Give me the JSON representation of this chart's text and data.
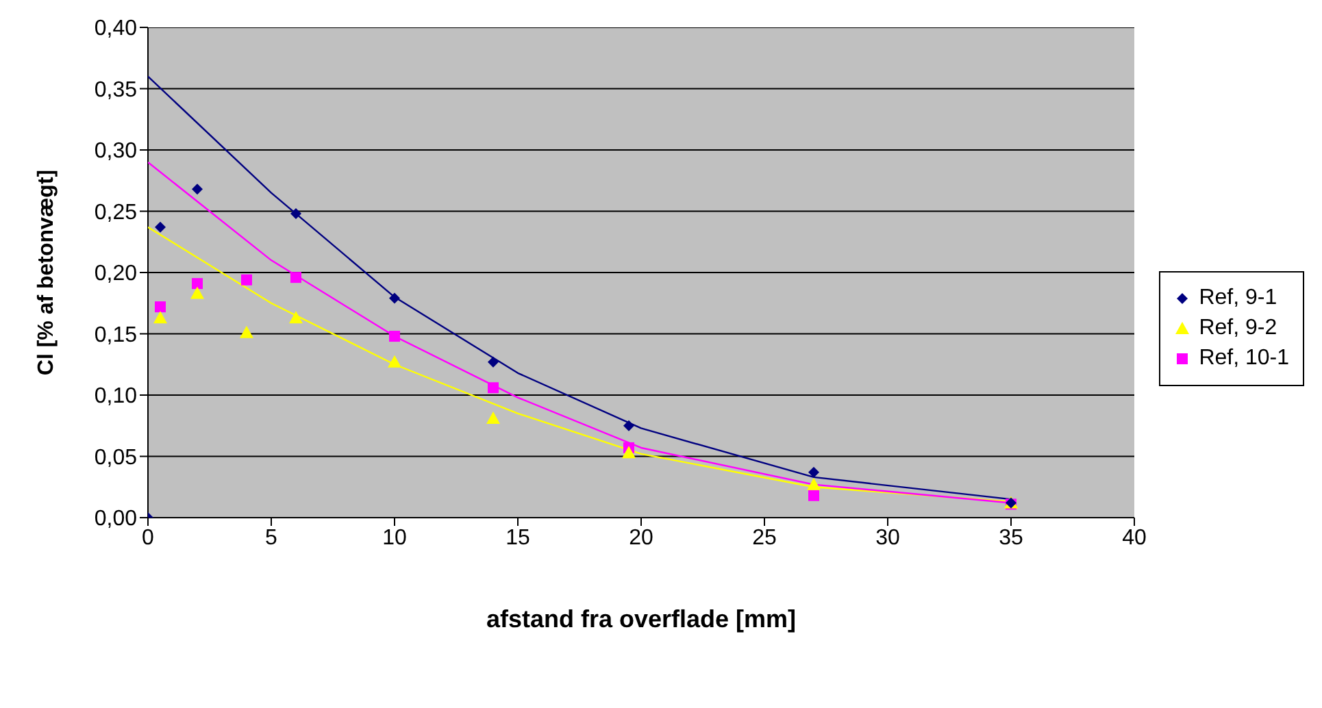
{
  "chart_data": {
    "type": "scatter",
    "xlabel": "afstand fra overflade [mm]",
    "ylabel": "Cl [% af betonvægt]",
    "xlim": [
      0,
      40
    ],
    "xticks": [
      0,
      5,
      10,
      15,
      20,
      25,
      30,
      35,
      40
    ],
    "ylim": [
      0,
      0.4
    ],
    "yticks": [
      {
        "value": 0,
        "label": "0,00"
      },
      {
        "value": 0.05,
        "label": "0,05"
      },
      {
        "value": 0.1,
        "label": "0,10"
      },
      {
        "value": 0.15,
        "label": "0,15"
      },
      {
        "value": 0.2,
        "label": "0,20"
      },
      {
        "value": 0.25,
        "label": "0,25"
      },
      {
        "value": 0.3,
        "label": "0,30"
      },
      {
        "value": 0.35,
        "label": "0,35"
      },
      {
        "value": 0.4,
        "label": "0,40"
      }
    ],
    "grid": "y",
    "legend": "right",
    "series": [
      {
        "name": "Ref, 9-1",
        "type": "scatter",
        "marker": "diamond",
        "color": "#000080",
        "x": [
          0,
          0.5,
          2,
          6,
          10,
          14,
          19.5,
          27,
          35
        ],
        "values": [
          0,
          0.237,
          0.268,
          0.248,
          0.179,
          0.127,
          0.075,
          0.037,
          0.012
        ]
      },
      {
        "name": "Ref, 9-2",
        "type": "scatter",
        "marker": "triangle",
        "color": "#ffff00",
        "x": [
          0.5,
          2,
          4,
          6,
          10,
          14,
          19.5,
          27,
          35
        ],
        "values": [
          0.163,
          0.183,
          0.151,
          0.163,
          0.127,
          0.081,
          0.053,
          0.027,
          0.012
        ]
      },
      {
        "name": "Ref, 10-1",
        "type": "scatter",
        "marker": "square",
        "color": "#ff00ff",
        "x": [
          0.5,
          2,
          4,
          6,
          10,
          14,
          19.5,
          27,
          35
        ],
        "values": [
          0.172,
          0.191,
          0.194,
          0.196,
          0.148,
          0.106,
          0.057,
          0.018,
          0.011
        ]
      },
      {
        "type": "line",
        "marker": "none",
        "color": "#000080",
        "x": [
          0,
          5,
          10,
          15,
          20,
          27,
          35
        ],
        "values": [
          0.36,
          0.265,
          0.18,
          0.118,
          0.073,
          0.033,
          0.015
        ]
      },
      {
        "type": "line",
        "marker": "none",
        "color": "#ff00ff",
        "x": [
          0,
          5,
          10,
          15,
          20,
          27,
          35
        ],
        "values": [
          0.29,
          0.21,
          0.148,
          0.098,
          0.057,
          0.027,
          0.012
        ]
      },
      {
        "type": "line",
        "marker": "none",
        "color": "#ffff00",
        "x": [
          0,
          5,
          10,
          15,
          20,
          27,
          35
        ],
        "values": [
          0.237,
          0.175,
          0.125,
          0.085,
          0.052,
          0.025,
          0.013
        ]
      }
    ]
  }
}
